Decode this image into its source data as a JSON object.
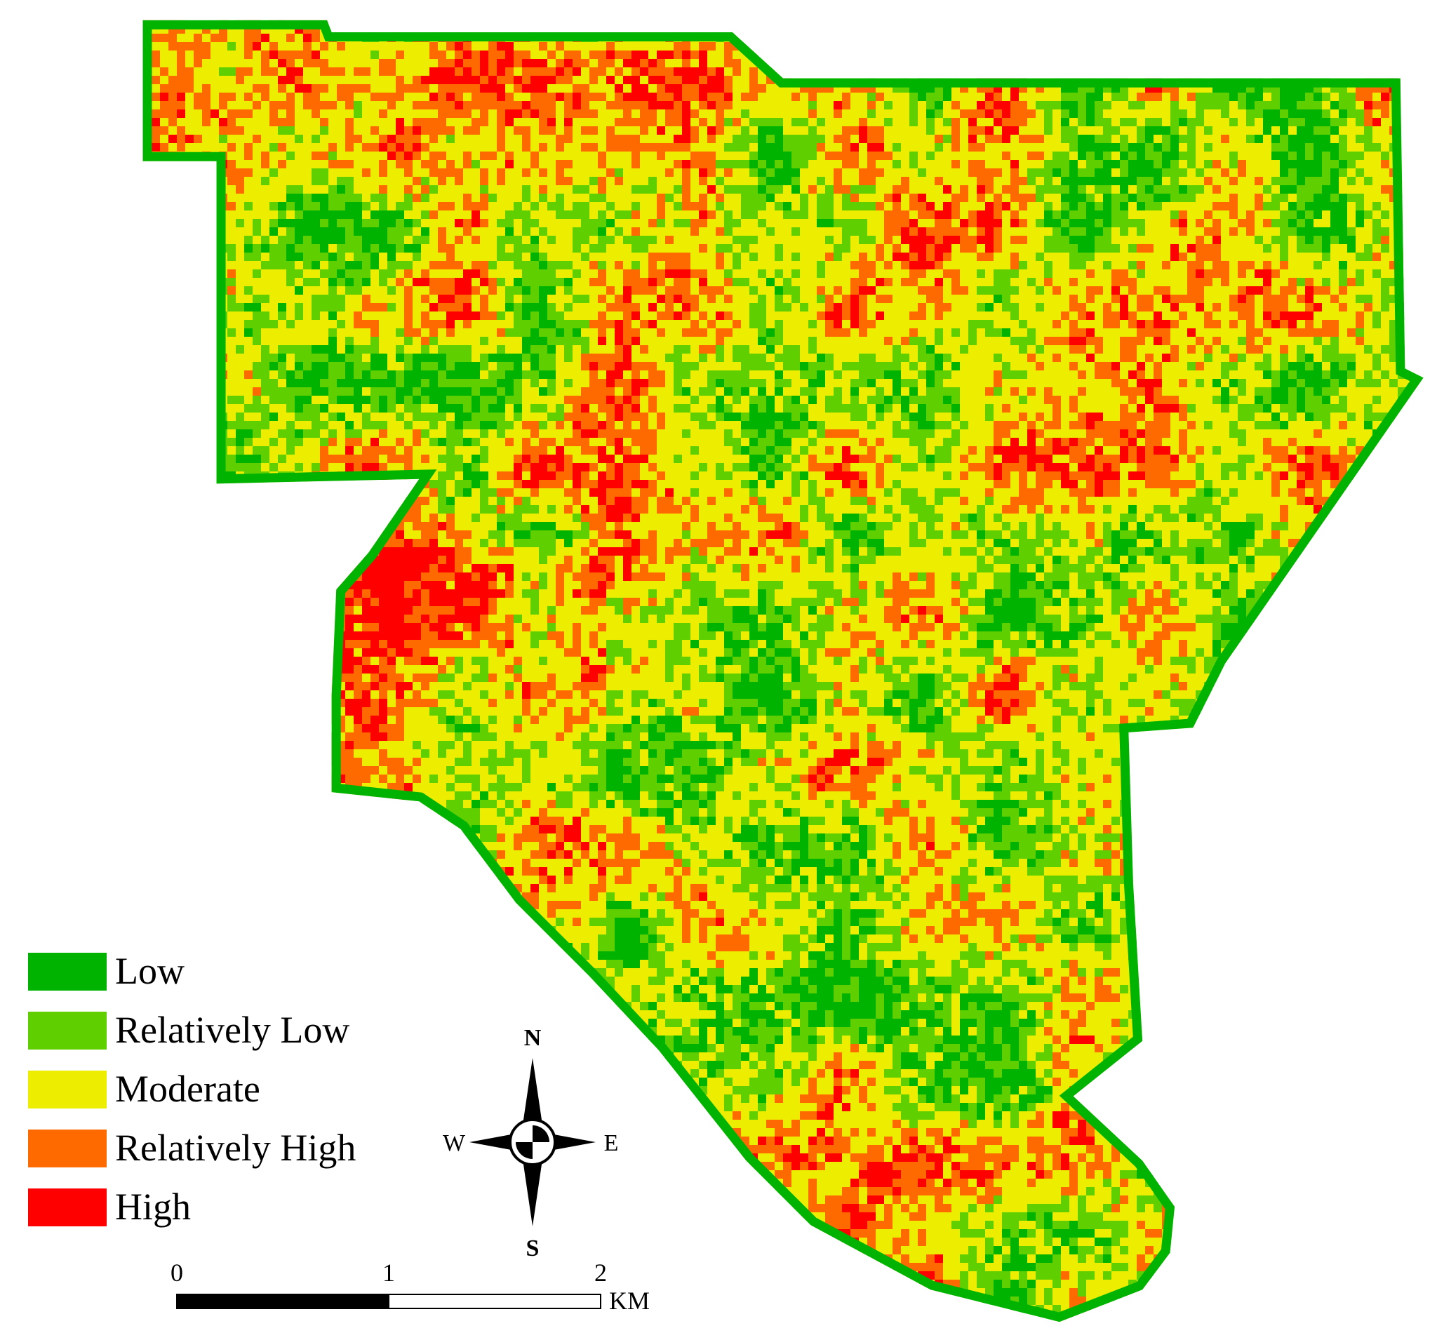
{
  "legend": {
    "items": [
      {
        "label": "Low",
        "color": "#00b300"
      },
      {
        "label": "Relatively Low",
        "color": "#5fcf00"
      },
      {
        "label": "Moderate",
        "color": "#eded00"
      },
      {
        "label": "Relatively High",
        "color": "#ff6a00"
      },
      {
        "label": "High",
        "color": "#ff0000"
      }
    ]
  },
  "compass": {
    "north": "N",
    "south": "S",
    "east": "E",
    "west": "W"
  },
  "scale_bar": {
    "ticks": [
      0,
      1,
      2
    ],
    "unit": "KM"
  }
}
